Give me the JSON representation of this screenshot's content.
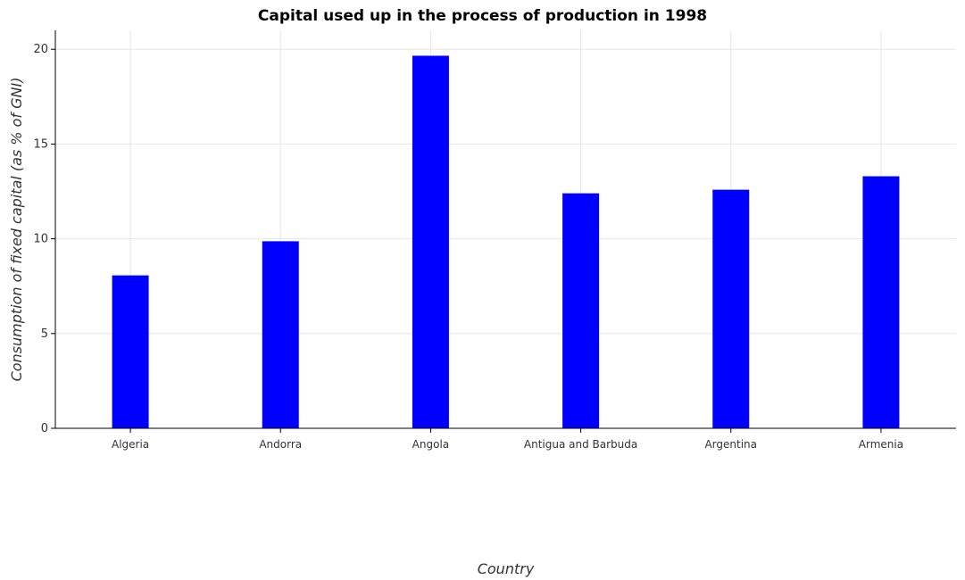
{
  "chart_data": {
    "type": "bar",
    "title": "Capital used up in the process of production in 1998",
    "xlabel": "Country",
    "ylabel": "Consumption of fixed capital (as % of GNI)",
    "categories": [
      "Algeria",
      "Andorra",
      "Angola",
      "Antigua and Barbuda",
      "Argentina",
      "Armenia"
    ],
    "values": [
      8.07,
      9.87,
      19.66,
      12.4,
      12.59,
      13.3
    ],
    "ylim": [
      0,
      21
    ],
    "yticks": [
      0,
      5,
      10,
      15,
      20
    ],
    "grid": true,
    "bar_color": "#0000ff"
  }
}
